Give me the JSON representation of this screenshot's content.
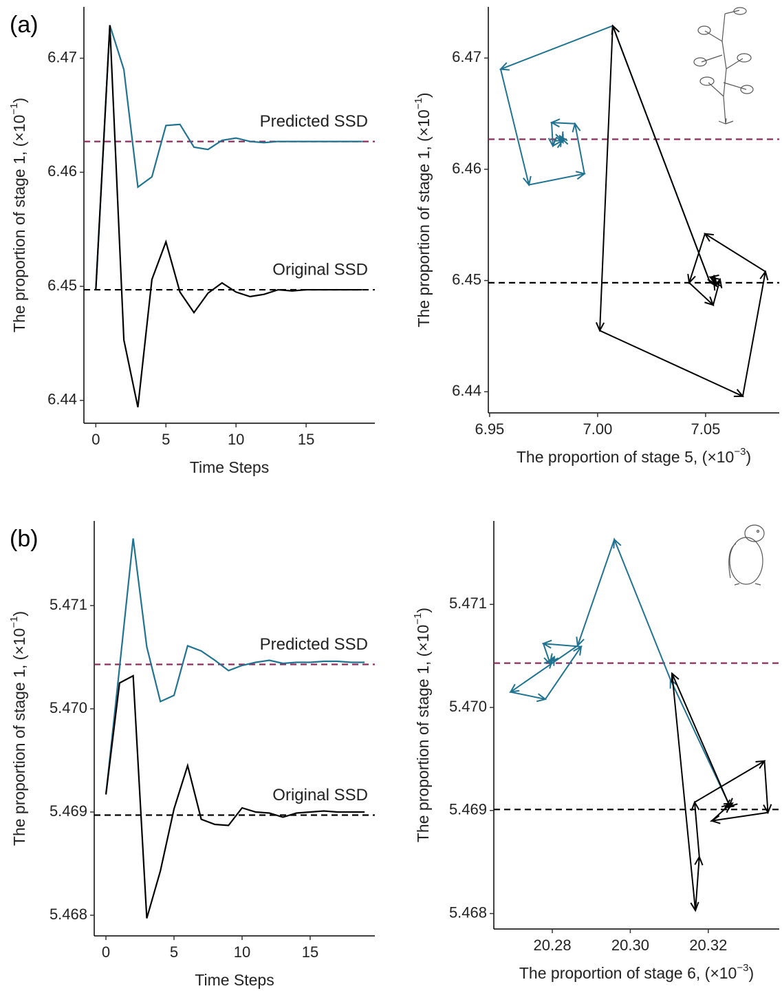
{
  "chart_data": [
    {
      "type": "line",
      "panel_label": "(a)",
      "x_label": "Time Steps",
      "y_label": {
        "text": "The proportion of stage 1, (×10",
        "sup": "−1",
        "end": ")"
      },
      "x": [
        0,
        1,
        2,
        3,
        4,
        5,
        6,
        7,
        8,
        9,
        10,
        11,
        12,
        13,
        14,
        15,
        16,
        17,
        18,
        19
      ],
      "xlim": [
        -0.85,
        19.9
      ],
      "xticks": [
        0,
        5,
        10,
        15
      ],
      "ylim": [
        6.438,
        6.4745
      ],
      "yticks": [
        6.44,
        6.45,
        6.46,
        6.47
      ],
      "series": [
        {
          "color": "#1f7391",
          "values": [
            6.4497,
            6.4729,
            6.469,
            6.4587,
            6.4596,
            6.4641,
            6.4642,
            6.4622,
            6.462,
            6.4628,
            6.463,
            6.4627,
            6.4626,
            6.4627,
            6.4627,
            6.4627,
            6.4627,
            6.4627,
            6.4627,
            6.4627
          ]
        },
        {
          "color": "#000000",
          "values": [
            6.4497,
            6.4729,
            6.4453,
            6.4394,
            6.4506,
            6.4539,
            6.4495,
            6.4477,
            6.4494,
            6.4503,
            6.4495,
            6.4491,
            6.4493,
            6.4497,
            6.4496,
            6.4497,
            6.4497,
            6.4497,
            6.4497,
            6.4497
          ]
        }
      ],
      "hlines": [
        {
          "label": "Predicted SSD",
          "value": 6.4627,
          "color": "#8e2c5c"
        },
        {
          "label": "Original SSD",
          "value": 6.4497,
          "color": "#000000"
        }
      ]
    },
    {
      "type": "trajectory",
      "x_label": {
        "text": "The proportion of stage 5, (×10",
        "sup": "−3",
        "end": ")"
      },
      "y_label": {
        "text": "The proportion of stage 1, (×10",
        "sup": "−1",
        "end": ")"
      },
      "xlim": [
        6.9494,
        7.0841
      ],
      "xticks": [
        6.95,
        {
          "value": 7,
          "label": "7.00"
        },
        7.05
      ],
      "ylim": [
        6.4381,
        6.4746
      ],
      "yticks": [
        6.44,
        6.45,
        6.46,
        6.47
      ],
      "series": [
        {
          "color": "#1f7391",
          "x": [
            7.0519,
            7.007,
            6.9551,
            6.9682,
            6.9939,
            6.9895,
            6.9787,
            6.9793,
            6.9838,
            6.9825,
            6.984,
            6.9832,
            6.9836
          ],
          "values": [
            6.4499,
            6.4729,
            6.469,
            6.4586,
            6.4596,
            6.4641,
            6.4642,
            6.4621,
            6.4626,
            6.463,
            6.4624,
            6.4628,
            6.4626
          ]
        },
        {
          "color": "#000000",
          "x": [
            7.0519,
            7.007,
            7.001,
            7.0672,
            7.0777,
            7.0497,
            7.0424,
            7.0535,
            7.0567,
            7.0522,
            7.0551,
            7.0538,
            7.0545
          ],
          "values": [
            6.4499,
            6.4729,
            6.4455,
            6.4396,
            6.4508,
            6.4542,
            6.4498,
            6.4478,
            6.4501,
            6.4503,
            6.4495,
            6.4499,
            6.4497
          ]
        }
      ],
      "hlines": [
        {
          "value": 6.4627,
          "color": "#8e2c5c"
        },
        {
          "value": 6.4498,
          "color": "#000000"
        }
      ]
    },
    {
      "type": "line",
      "panel_label": "(b)",
      "x_label": "Time Steps",
      "y_label": {
        "text": "The proportion of stage 1, (×10",
        "sup": "−1",
        "end": ")"
      },
      "x": [
        0,
        1,
        2,
        3,
        4,
        5,
        6,
        7,
        8,
        9,
        10,
        11,
        12,
        13,
        14,
        15,
        16,
        17,
        18,
        19
      ],
      "xlim": [
        -0.86,
        19.75
      ],
      "xticks": [
        0,
        5,
        10,
        15
      ],
      "ylim": [
        5.4678,
        5.47182
      ],
      "yticks": [
        5.468,
        5.469,
        {
          "value": 5.47,
          "label": "5.470"
        },
        5.471
      ],
      "series": [
        {
          "color": "#1f7391",
          "values": [
            5.46917,
            5.4704,
            5.47165,
            5.4706,
            5.47007,
            5.47013,
            5.47061,
            5.47056,
            5.47047,
            5.47037,
            5.47042,
            5.47045,
            5.47047,
            5.47044,
            5.47045,
            5.47045,
            5.47046,
            5.47046,
            5.47045,
            5.47045
          ]
        },
        {
          "color": "#000000",
          "values": [
            5.46917,
            5.47025,
            5.47032,
            5.46797,
            5.46843,
            5.46903,
            5.46945,
            5.46893,
            5.46888,
            5.46887,
            5.46904,
            5.469,
            5.46899,
            5.46895,
            5.46899,
            5.469,
            5.46901,
            5.469,
            5.469,
            5.469
          ]
        }
      ],
      "hlines": [
        {
          "label": "Predicted SSD",
          "value": 5.47043,
          "color": "#8e2c5c"
        },
        {
          "label": "Original SSD",
          "value": 5.46897,
          "color": "#000000"
        }
      ]
    },
    {
      "type": "trajectory",
      "x_label": {
        "text": "The proportion of stage 6, (×10",
        "sup": "−3",
        "end": ")"
      },
      "y_label": {
        "text": "The proportion of stage 1, (×10",
        "sup": "−1",
        "end": ")"
      },
      "xlim": [
        20.265,
        20.3382
      ],
      "xticks": [
        20.28,
        {
          "value": 20.3,
          "label": "20.30"
        },
        20.32
      ],
      "ylim": [
        5.46785,
        5.47181
      ],
      "yticks": [
        5.468,
        5.469,
        {
          "value": 5.47,
          "label": "5.470"
        },
        5.471
      ],
      "series": [
        {
          "color": "#1f7391",
          "x": [
            20.3253,
            20.3103,
            20.2959,
            20.2865,
            20.2693,
            20.2782,
            20.2874,
            20.2777,
            20.2795,
            20.2805,
            20.2795,
            20.28
          ],
          "values": [
            5.46906,
            5.47027,
            5.47163,
            5.4706,
            5.47015,
            5.47008,
            5.47059,
            5.47062,
            5.47042,
            5.47049,
            5.47044,
            5.47046
          ]
        },
        {
          "color": "#000000",
          "x": [
            20.3253,
            20.3107,
            20.3167,
            20.3177,
            20.3165,
            20.3344,
            20.3353,
            20.3209,
            20.3256,
            20.3244,
            20.3262,
            20.3253
          ],
          "values": [
            5.46906,
            5.47033,
            5.46803,
            5.46855,
            5.46908,
            5.46948,
            5.46898,
            5.4689,
            5.46906,
            5.46903,
            5.46907,
            5.46904
          ]
        }
      ],
      "hlines": [
        {
          "value": 5.47043,
          "color": "#8e2c5c"
        },
        {
          "value": 5.46901,
          "color": "#000000"
        }
      ]
    }
  ]
}
